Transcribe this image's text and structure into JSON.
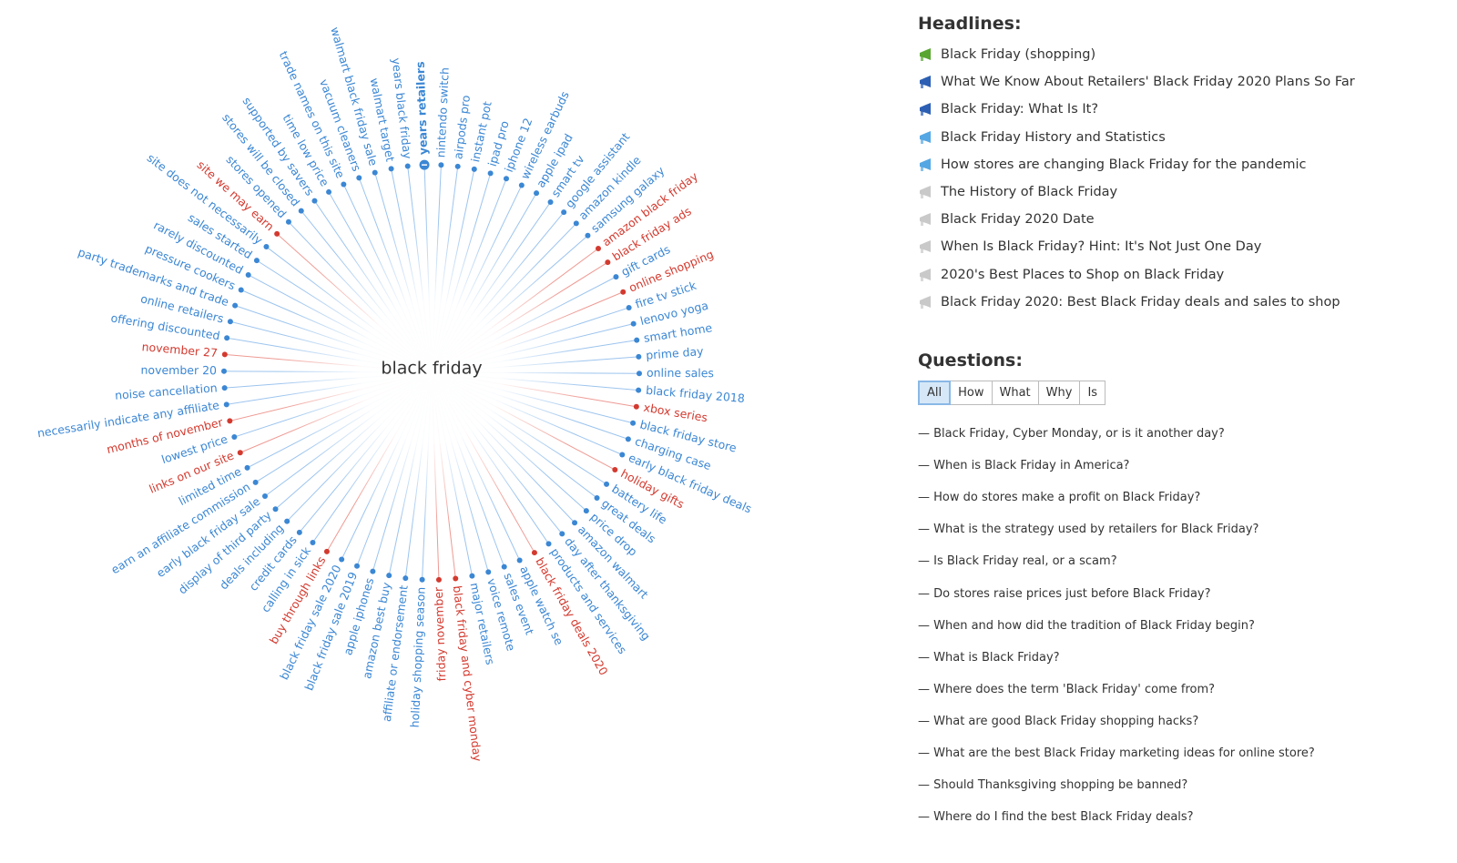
{
  "topic": "black friday",
  "keyword_colors": {
    "normal": "#3b87d4",
    "highlight": "#d33a2f",
    "normal_line": "#9cc4ee",
    "highlight_line": "#ee9a93"
  },
  "keywords": [
    {
      "text": "years retailers",
      "selected": true
    },
    {
      "text": "nintendo switch"
    },
    {
      "text": "airpods pro"
    },
    {
      "text": "instant pot"
    },
    {
      "text": "ipad pro"
    },
    {
      "text": "iphone 12"
    },
    {
      "text": "wireless earbuds"
    },
    {
      "text": "apple ipad"
    },
    {
      "text": "smart tv"
    },
    {
      "text": "google assistant"
    },
    {
      "text": "amazon kindle"
    },
    {
      "text": "samsung galaxy"
    },
    {
      "text": "amazon black friday",
      "highlight": true
    },
    {
      "text": "black friday ads",
      "highlight": true
    },
    {
      "text": "gift cards"
    },
    {
      "text": "online shopping",
      "highlight": true
    },
    {
      "text": "fire tv stick"
    },
    {
      "text": "lenovo yoga"
    },
    {
      "text": "smart home"
    },
    {
      "text": "prime day"
    },
    {
      "text": "online sales"
    },
    {
      "text": "black friday 2018"
    },
    {
      "text": "xbox series",
      "highlight": true
    },
    {
      "text": "black friday store"
    },
    {
      "text": "charging case"
    },
    {
      "text": "early black friday deals"
    },
    {
      "text": "holiday gifts",
      "highlight": true
    },
    {
      "text": "battery life"
    },
    {
      "text": "great deals"
    },
    {
      "text": "price drop"
    },
    {
      "text": "amazon walmart"
    },
    {
      "text": "day after thanksgiving"
    },
    {
      "text": "products and services"
    },
    {
      "text": "black friday deals 2020",
      "highlight": true
    },
    {
      "text": "apple watch se"
    },
    {
      "text": "sales event"
    },
    {
      "text": "voice remote"
    },
    {
      "text": "major retailers"
    },
    {
      "text": "black friday and cyber monday",
      "highlight": true
    },
    {
      "text": "friday november",
      "highlight": true
    },
    {
      "text": "holiday shopping season"
    },
    {
      "text": "affiliate or endorsement"
    },
    {
      "text": "amazon best buy"
    },
    {
      "text": "apple iphones"
    },
    {
      "text": "black friday sale 2019"
    },
    {
      "text": "black friday sale 2020"
    },
    {
      "text": "buy through links",
      "highlight": true
    },
    {
      "text": "calling in sick"
    },
    {
      "text": "credit cards"
    },
    {
      "text": "deals including"
    },
    {
      "text": "display of third party"
    },
    {
      "text": "early black friday sale"
    },
    {
      "text": "earn an affiliate commission"
    },
    {
      "text": "limited time"
    },
    {
      "text": "links on our site",
      "highlight": true
    },
    {
      "text": "lowest price"
    },
    {
      "text": "months of november",
      "highlight": true
    },
    {
      "text": "necessarily indicate any affiliate"
    },
    {
      "text": "noise cancellation"
    },
    {
      "text": "november 20"
    },
    {
      "text": "november 27",
      "highlight": true
    },
    {
      "text": "offering discounted"
    },
    {
      "text": "online retailers"
    },
    {
      "text": "party trademarks and trade"
    },
    {
      "text": "pressure cookers"
    },
    {
      "text": "rarely discounted"
    },
    {
      "text": "sales started"
    },
    {
      "text": "site does not necessarily"
    },
    {
      "text": "site we may earn",
      "highlight": true
    },
    {
      "text": "stores opened"
    },
    {
      "text": "stores will be closed"
    },
    {
      "text": "supported by savers"
    },
    {
      "text": "time low price"
    },
    {
      "text": "trade names on this site"
    },
    {
      "text": "vacuum cleaners"
    },
    {
      "text": "walmart black friday sale"
    },
    {
      "text": "walmart target"
    },
    {
      "text": "years black friday"
    }
  ],
  "headlines": {
    "title": "Headlines:",
    "items": [
      {
        "text": "Black Friday (shopping)",
        "icon_color": "#5aa532"
      },
      {
        "text": "What We Know About Retailers' Black Friday 2020 Plans So Far",
        "icon_color": "#2c5fb3"
      },
      {
        "text": "Black Friday: What Is It?",
        "icon_color": "#2c5fb3"
      },
      {
        "text": "Black Friday History and Statistics",
        "icon_color": "#55a7e3"
      },
      {
        "text": "How stores are changing Black Friday for the pandemic",
        "icon_color": "#55a7e3"
      },
      {
        "text": "The History of Black Friday",
        "icon_color": "#c9c9c9"
      },
      {
        "text": "Black Friday 2020 Date",
        "icon_color": "#c9c9c9"
      },
      {
        "text": "When Is Black Friday? Hint: It's Not Just One Day",
        "icon_color": "#c9c9c9"
      },
      {
        "text": "2020's Best Places to Shop on Black Friday",
        "icon_color": "#c9c9c9"
      },
      {
        "text": "Black Friday 2020: Best Black Friday deals and sales to shop",
        "icon_color": "#c9c9c9"
      }
    ]
  },
  "questions": {
    "title": "Questions:",
    "filters": [
      "All",
      "How",
      "What",
      "Why",
      "Is"
    ],
    "active_filter": 0,
    "items": [
      "— Black Friday, Cyber Monday, or is it another day?",
      "— When is Black Friday in America?",
      "— How do stores make a profit on Black Friday?",
      "— What is the strategy used by retailers for Black Friday?",
      "— Is Black Friday real, or a scam?",
      "— Do stores raise prices just before Black Friday?",
      "— When and how did the tradition of Black Friday begin?",
      "— What is Black Friday?",
      "— Where does the term 'Black Friday' come from?",
      "— What are good Black Friday shopping hacks?",
      "— What are the best Black Friday marketing ideas for online store?",
      "— Should Thanksgiving shopping be banned?",
      "— Where do I find the best Black Friday deals?"
    ]
  }
}
